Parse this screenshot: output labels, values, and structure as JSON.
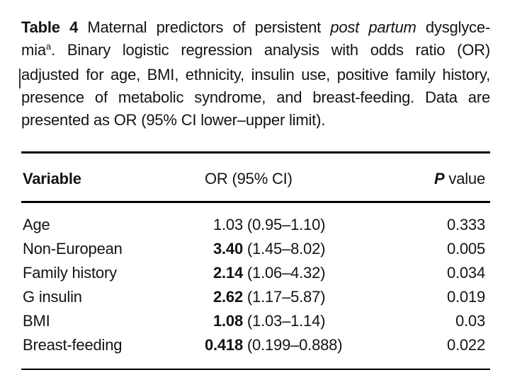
{
  "colors": {
    "background": "#ffffff",
    "text": "#141414",
    "rule": "#000000"
  },
  "caption": {
    "lines": [
      {
        "justify": true,
        "segments": [
          {
            "t": "Table 4",
            "b": true
          },
          {
            "t": " Maternal predictors of persistent "
          },
          {
            "t": "post partum",
            "i": true
          },
          {
            "t": " dysglyce-"
          }
        ]
      },
      {
        "justify": true,
        "segments": [
          {
            "t": "mia"
          },
          {
            "t": "a",
            "sup": true
          },
          {
            "t": ". Binary logistic regression analysis with odds ratio (OR)"
          }
        ]
      },
      {
        "justify": true,
        "segments": [
          {
            "t": "adjusted for age, BMI, ethnicity, insulin use, positive family history,"
          }
        ]
      },
      {
        "justify": true,
        "segments": [
          {
            "t": "presence of metabolic syndrome, and breast-feeding. Data are"
          }
        ]
      },
      {
        "justify": false,
        "segments": [
          {
            "t": "presented as OR (95% CI lower–upper limit)."
          }
        ]
      }
    ]
  },
  "table": {
    "headers": {
      "variable": "Variable",
      "or": "OR (95% CI)",
      "p_italic": "P",
      "p_rest": " value"
    },
    "rows": [
      {
        "variable": "Age",
        "or": "1.03",
        "ci": "(0.95–1.10)",
        "p": "0.333",
        "significant": false
      },
      {
        "variable": "Non-European",
        "or": "3.40",
        "ci": "(1.45–8.02)",
        "p": "0.005",
        "significant": true
      },
      {
        "variable": "Family history",
        "or": "2.14",
        "ci": "(1.06–4.32)",
        "p": "0.034",
        "significant": true
      },
      {
        "variable": "G insulin",
        "or": "2.62",
        "ci": "(1.17–5.87)",
        "p": "0.019",
        "significant": true
      },
      {
        "variable": "BMI",
        "or": "1.08",
        "ci": "(1.03–1.14)",
        "p": "0.03",
        "significant": true
      },
      {
        "variable": "Breast-feeding",
        "or": "0.418",
        "ci": "(0.199–0.888)",
        "p": "0.022",
        "significant": true
      }
    ]
  }
}
